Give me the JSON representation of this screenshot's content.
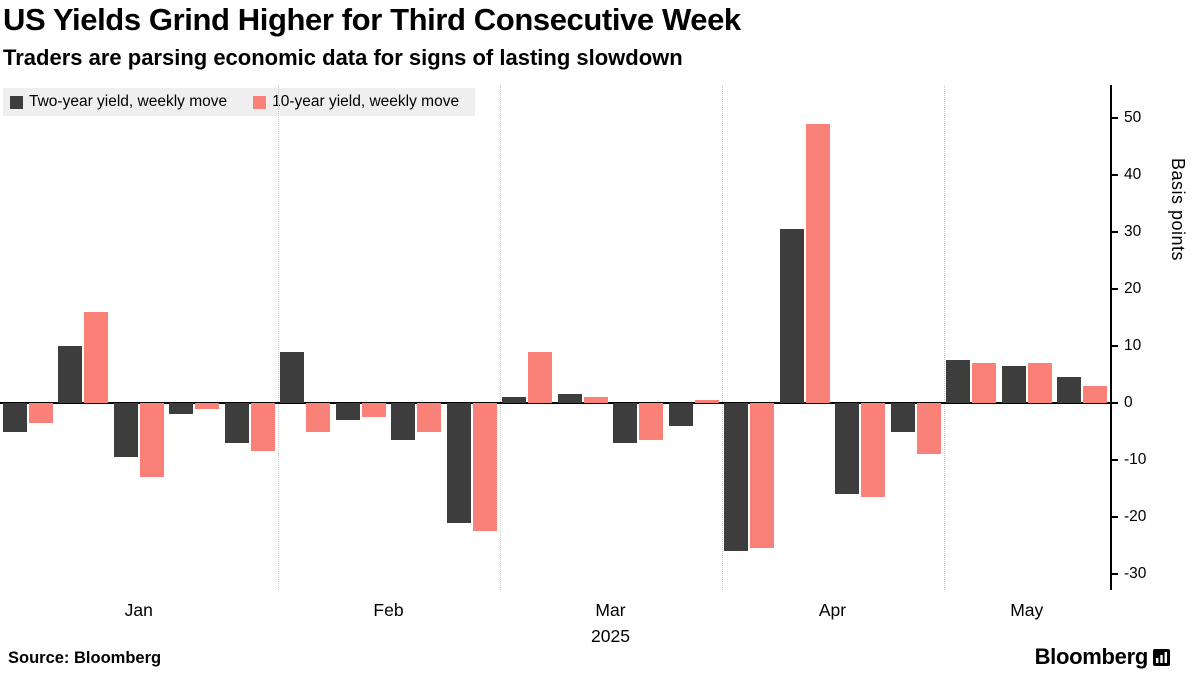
{
  "header": {
    "title": "US Yields Grind Higher for Third Consecutive Week",
    "subtitle": "Traders are parsing economic data for signs of lasting slowdown"
  },
  "legend": [
    {
      "label": "Two-year yield, weekly move",
      "color": "#3d3d3d"
    },
    {
      "label": "10-year yield, weekly move",
      "color": "#fa8178"
    }
  ],
  "footer": {
    "source_label": "Source: Bloomberg",
    "brand": "Bloomberg"
  },
  "chart_data": {
    "type": "bar",
    "title": "US Yields Grind Higher for Third Consecutive Week",
    "subtitle": "Traders are parsing economic data for signs of lasting slowdown",
    "ylabel": "Basis points",
    "year_label": "2025",
    "yticks": [
      50,
      40,
      30,
      20,
      10,
      0,
      -10,
      -20,
      -30
    ],
    "ylim": [
      -33,
      56
    ],
    "grid": "vertical-month-separators-dotted",
    "legend_position": "top-left",
    "axis_side": "right",
    "months": [
      {
        "label": "Jan",
        "weeks": 5
      },
      {
        "label": "Feb",
        "weeks": 4
      },
      {
        "label": "Mar",
        "weeks": 4
      },
      {
        "label": "Apr",
        "weeks": 4
      },
      {
        "label": "May",
        "weeks": 3
      }
    ],
    "series": [
      {
        "name": "Two-year yield, weekly move",
        "color": "#3d3d3d",
        "values": [
          -5,
          10,
          -9.5,
          -2,
          -7,
          9,
          -3,
          -6.5,
          -21,
          1,
          1.5,
          -7,
          -4,
          -26,
          30.5,
          -16,
          -5,
          7.5,
          6.5,
          4.5
        ]
      },
      {
        "name": "10-year yield, weekly move",
        "color": "#fa8178",
        "values": [
          -3.5,
          16,
          -13,
          -1,
          -8.5,
          -5,
          -2.5,
          -5,
          -22.5,
          9,
          1,
          -6.5,
          0.5,
          -25.5,
          49,
          -16.5,
          -9,
          7,
          7,
          3
        ]
      }
    ]
  }
}
